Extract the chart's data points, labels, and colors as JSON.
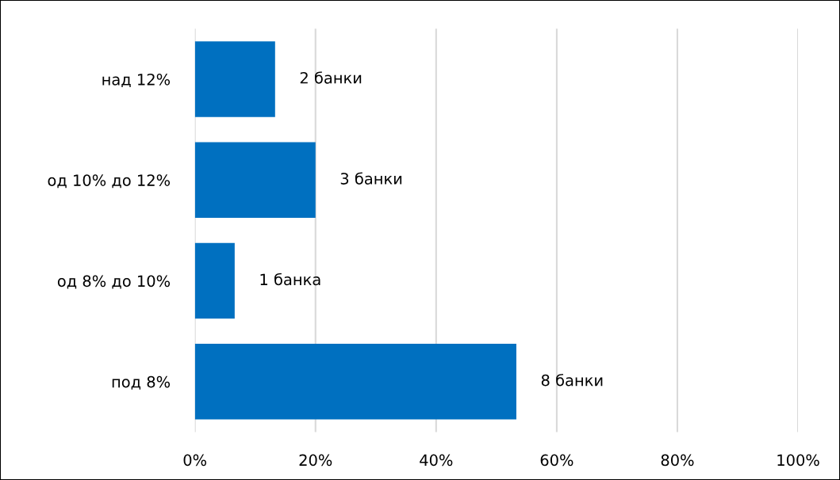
{
  "chart_data": {
    "type": "bar",
    "orientation": "horizontal",
    "categories": [
      "над 12%",
      "од 10% до 12%",
      "од 8% до 10%",
      "под 8%"
    ],
    "values": [
      13.3,
      20,
      6.6,
      53.3
    ],
    "annotations": [
      {
        "text": "2 банки",
        "x": 13.3,
        "y": "над 12%"
      },
      {
        "text": "3 банки",
        "x": 20,
        "y": "од 10% до 12%"
      },
      {
        "text": "1 банка",
        "x": 6.6,
        "y": "од 8% до 10%"
      },
      {
        "text": "8 банки",
        "x": 53.3,
        "y": "под 8%"
      }
    ],
    "color": "#0070c0",
    "xlim": [
      0,
      100
    ],
    "xticks": [
      {
        "value": 0,
        "label": "0%"
      },
      {
        "value": 20,
        "label": "20%"
      },
      {
        "value": 40,
        "label": "40%"
      },
      {
        "value": 60,
        "label": "60%"
      },
      {
        "value": 80,
        "label": "80%"
      },
      {
        "value": 100,
        "label": "100%"
      }
    ],
    "grid": "x"
  }
}
